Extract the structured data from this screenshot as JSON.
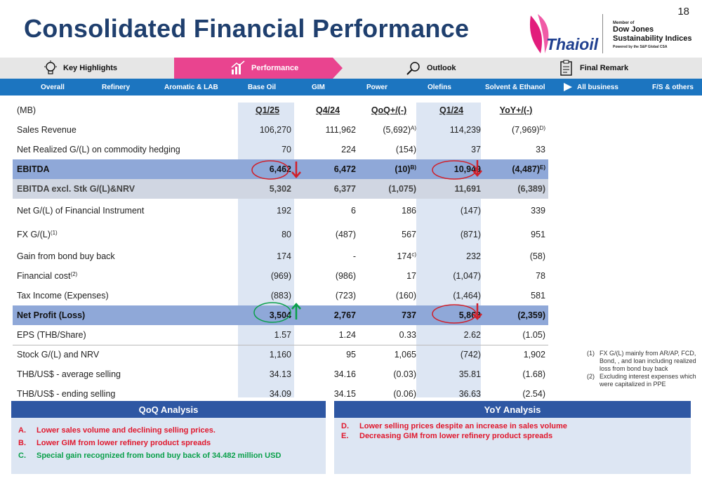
{
  "page_number": "18",
  "title": "Consolidated Financial Performance",
  "logo": {
    "brand": "Thaioil"
  },
  "dj": {
    "member": "Member of",
    "name1": "Dow Jones",
    "name2": "Sustainability Indices",
    "powered": "Powered by the S&P Global CSA"
  },
  "tabs": [
    "Key Highlights",
    "Performance",
    "Outlook",
    "Final Remark"
  ],
  "subnav": [
    "Overall",
    "Refinery",
    "Aromatic  & LAB",
    "Base Oil",
    "GIM",
    "Power",
    "Olefins",
    "Solvent & Ethanol",
    "All business",
    "F/S & others"
  ],
  "table": {
    "unit": "(MB)",
    "headers": [
      "Q1/25",
      "Q4/24",
      "QoQ+/(-)",
      "Q1/24",
      "YoY+/(-)"
    ],
    "rows": [
      {
        "label": "Sales Revenue",
        "sup": "",
        "v": [
          "106,270",
          "111,962",
          "(5,692)",
          "114,239",
          "(7,969)"
        ],
        "vsup": [
          "",
          "",
          "A)",
          "",
          "D)"
        ]
      },
      {
        "label": "Net Realized G/(L) on commodity hedging",
        "sup": "",
        "v": [
          "70",
          "224",
          "(154)",
          "37",
          "33"
        ],
        "vsup": [
          "",
          "",
          "",
          "",
          ""
        ]
      },
      {
        "label": "EBITDA",
        "sup": "",
        "v": [
          "6,462",
          "6,472",
          "(10)",
          "10,949",
          "(4,487)"
        ],
        "vsup": [
          "",
          "",
          "B)",
          "",
          "E)"
        ]
      },
      {
        "label": "EBITDA excl. Stk G/(L)&NRV",
        "sup": "",
        "v": [
          "5,302",
          "6,377",
          "(1,075)",
          "11,691",
          "(6,389)"
        ],
        "vsup": [
          "",
          "",
          "",
          "",
          ""
        ]
      },
      {
        "label": "Net G/(L) of Financial Instrument",
        "sup": "",
        "v": [
          "192",
          "6",
          "186",
          "(147)",
          "339"
        ],
        "vsup": [
          "",
          "",
          "",
          "",
          ""
        ]
      },
      {
        "label": "FX G/(L)",
        "sup": "(1)",
        "v": [
          "80",
          "(487)",
          "567",
          "(871)",
          "951"
        ],
        "vsup": [
          "",
          "",
          "",
          "",
          ""
        ]
      },
      {
        "label": "Gain from bond buy back",
        "sup": "",
        "v": [
          "174",
          "-",
          "174",
          "232",
          "(58)"
        ],
        "vsup": [
          "",
          "",
          "c)",
          "",
          ""
        ]
      },
      {
        "label": "Financial cost",
        "sup": "(2)",
        "v": [
          "(969)",
          "(986)",
          "17",
          "(1,047)",
          "78"
        ],
        "vsup": [
          "",
          "",
          "",
          "",
          ""
        ]
      },
      {
        "label": "Tax Income (Expenses)",
        "sup": "",
        "v": [
          "(883)",
          "(723)",
          "(160)",
          "(1,464)",
          "581"
        ],
        "vsup": [
          "",
          "",
          "",
          "",
          ""
        ]
      },
      {
        "label": "Net Profit (Loss)",
        "sup": "",
        "v": [
          "3,504",
          "2,767",
          "737",
          "5,863",
          "(2,359)"
        ],
        "vsup": [
          "",
          "",
          "",
          "",
          ""
        ]
      },
      {
        "label": "EPS (THB/Share)",
        "sup": "",
        "v": [
          "1.57",
          "1.24",
          "0.33",
          "2.62",
          "(1.05)"
        ],
        "vsup": [
          "",
          "",
          "",
          "",
          ""
        ]
      },
      {
        "label": "Stock G/(L) and NRV",
        "sup": "",
        "v": [
          "1,160",
          "95",
          "1,065",
          "(742)",
          "1,902"
        ],
        "vsup": [
          "",
          "",
          "",
          "",
          ""
        ]
      },
      {
        "label": "THB/US$ - average selling",
        "sup": "",
        "v": [
          "34.13",
          "34.16",
          "(0.03)",
          "35.81",
          "(1.68)"
        ],
        "vsup": [
          "",
          "",
          "",
          "",
          ""
        ]
      },
      {
        "label": "THB/US$ - ending selling",
        "sup": "",
        "v": [
          "34.09",
          "34.15",
          "(0.06)",
          "36.63",
          "(2.54)"
        ],
        "vsup": [
          "",
          "",
          "",
          "",
          ""
        ]
      }
    ]
  },
  "notes": [
    {
      "k": "(1)",
      "t": "FX G/(L) mainly from AR/AP, FCD, Bond, , and loan including realized loss from bond buy back"
    },
    {
      "k": "(2)",
      "t": "Excluding interest expenses which were capitalized in PPE"
    }
  ],
  "qoq": {
    "title": "QoQ Analysis",
    "items": [
      {
        "k": "A.",
        "t": "Lower sales volume and declining selling prices.",
        "color": "#e0182d"
      },
      {
        "k": "B.",
        "t": "Lower GIM from lower refinery product spreads",
        "color": "#e0182d"
      },
      {
        "k": "C.",
        "t": "Special gain recognized from bond buy back of 34.482 million USD",
        "color": "#0aa04a"
      }
    ]
  },
  "yoy": {
    "title": "YoY Analysis",
    "items": [
      {
        "k": "D.",
        "t": "Lower selling prices despite an increase in sales volume",
        "color": "#e0182d"
      },
      {
        "k": "E.",
        "t": "Decreasing GIM from lower refinery product spreads",
        "color": "#e0182d"
      }
    ]
  }
}
